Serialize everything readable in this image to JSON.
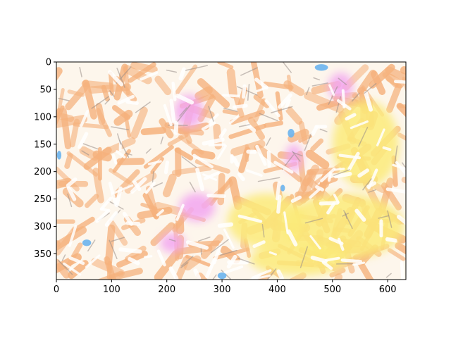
{
  "figure": {
    "description_free": true,
    "x_axis": {
      "range": [
        0,
        633
      ],
      "ticks": [
        "0",
        "100",
        "200",
        "300",
        "400",
        "500",
        "600"
      ]
    },
    "y_axis": {
      "range": [
        0,
        397
      ],
      "inverted": true,
      "ticks": [
        "0",
        "50",
        "100",
        "150",
        "200",
        "250",
        "300",
        "350"
      ]
    }
  },
  "palette": {
    "background": "#fdf6ec",
    "peach": "#f6b27d",
    "yellow": "#fbeb7a",
    "pink": "#f2a6f0",
    "blue": "#6ab4ee",
    "grey_streak": "#9a8f8a",
    "white": "#ffffff"
  },
  "blobs": {
    "pink": [
      {
        "x": 255,
        "y": 265,
        "rx": 32,
        "ry": 26
      },
      {
        "x": 240,
        "y": 90,
        "rx": 26,
        "ry": 30
      },
      {
        "x": 515,
        "y": 45,
        "rx": 22,
        "ry": 25
      },
      {
        "x": 430,
        "y": 175,
        "rx": 15,
        "ry": 25
      },
      {
        "x": 210,
        "y": 330,
        "rx": 22,
        "ry": 18
      }
    ],
    "yellow": [
      {
        "x": 520,
        "y": 300,
        "rx": 110,
        "ry": 60
      },
      {
        "x": 560,
        "y": 150,
        "rx": 60,
        "ry": 80
      },
      {
        "x": 380,
        "y": 290,
        "rx": 70,
        "ry": 50
      },
      {
        "x": 440,
        "y": 360,
        "rx": 90,
        "ry": 30
      }
    ],
    "blue": [
      {
        "x": 480,
        "y": 10,
        "rx": 12,
        "ry": 6
      },
      {
        "x": 55,
        "y": 330,
        "rx": 8,
        "ry": 6
      },
      {
        "x": 300,
        "y": 390,
        "rx": 8,
        "ry": 6
      },
      {
        "x": 425,
        "y": 130,
        "rx": 6,
        "ry": 8
      },
      {
        "x": 5,
        "y": 170,
        "rx": 4,
        "ry": 8
      },
      {
        "x": 410,
        "y": 230,
        "rx": 4,
        "ry": 6
      }
    ]
  }
}
